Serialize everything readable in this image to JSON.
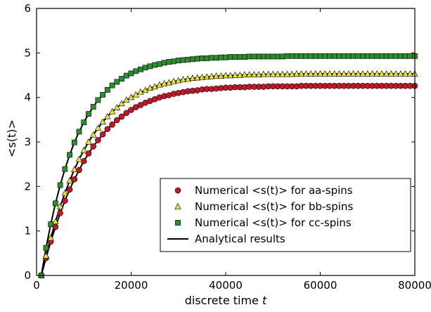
{
  "chart_data": {
    "type": "line",
    "xlabel_prefix": "discrete time ",
    "xlabel_var": "t",
    "ylabel": "<s(t)>",
    "xlim": [
      0,
      80000
    ],
    "ylim": [
      0,
      6
    ],
    "xticks": [
      0,
      20000,
      40000,
      60000,
      80000
    ],
    "yticks": [
      0,
      1,
      2,
      3,
      4,
      5,
      6
    ],
    "grid": false,
    "legend_position": "lower-right",
    "x_start": 1000,
    "x_step": 1000,
    "series": [
      {
        "name": "Numerical <s(t)> for aa-spins",
        "kind": "markers",
        "marker": "circle",
        "color": "#c0182a",
        "values": [
          0,
          0.39,
          0.76,
          1.09,
          1.4,
          1.68,
          1.93,
          2.16,
          2.37,
          2.57,
          2.74,
          2.9,
          3.04,
          3.17,
          3.29,
          3.39,
          3.49,
          3.57,
          3.65,
          3.72,
          3.78,
          3.83,
          3.88,
          3.92,
          3.96,
          4.0,
          4.03,
          4.05,
          4.08,
          4.1,
          4.12,
          4.14,
          4.15,
          4.16,
          4.18,
          4.19,
          4.19,
          4.2,
          4.21,
          4.22,
          4.22,
          4.23,
          4.23,
          4.23,
          4.24,
          4.24,
          4.24,
          4.24,
          4.25,
          4.25,
          4.25,
          4.25,
          4.25,
          4.25,
          4.25,
          4.26,
          4.26,
          4.26,
          4.26,
          4.26,
          4.26,
          4.26,
          4.26,
          4.26,
          4.26,
          4.26,
          4.26,
          4.26,
          4.26,
          4.26,
          4.26,
          4.26,
          4.26,
          4.26,
          4.26,
          4.26,
          4.26,
          4.26,
          4.26,
          4.26
        ]
      },
      {
        "name": "Numerical <s(t)> for bb-spins",
        "kind": "markers",
        "marker": "triangle",
        "color": "#e8e03a",
        "values": [
          0,
          0.44,
          0.84,
          1.21,
          1.55,
          1.85,
          2.13,
          2.38,
          2.61,
          2.81,
          3.0,
          3.16,
          3.31,
          3.45,
          3.57,
          3.68,
          3.77,
          3.86,
          3.94,
          4.0,
          4.06,
          4.12,
          4.16,
          4.21,
          4.24,
          4.28,
          4.31,
          4.33,
          4.36,
          4.38,
          4.4,
          4.41,
          4.43,
          4.44,
          4.45,
          4.46,
          4.47,
          4.48,
          4.48,
          4.49,
          4.49,
          4.5,
          4.5,
          4.51,
          4.51,
          4.51,
          4.51,
          4.52,
          4.52,
          4.52,
          4.52,
          4.52,
          4.52,
          4.52,
          4.53,
          4.53,
          4.53,
          4.53,
          4.53,
          4.53,
          4.53,
          4.53,
          4.53,
          4.53,
          4.53,
          4.53,
          4.53,
          4.53,
          4.53,
          4.53,
          4.53,
          4.53,
          4.53,
          4.53,
          4.53,
          4.53,
          4.53,
          4.53,
          4.53,
          4.53
        ]
      },
      {
        "name": "Numerical <s(t)> for cc-spins",
        "kind": "markers",
        "marker": "square",
        "color": "#2e8b2e",
        "values": [
          0,
          0.62,
          1.15,
          1.62,
          2.03,
          2.39,
          2.71,
          2.99,
          3.23,
          3.44,
          3.63,
          3.79,
          3.94,
          4.06,
          4.17,
          4.27,
          4.35,
          4.42,
          4.49,
          4.54,
          4.59,
          4.63,
          4.67,
          4.7,
          4.73,
          4.75,
          4.78,
          4.8,
          4.81,
          4.83,
          4.84,
          4.85,
          4.86,
          4.87,
          4.88,
          4.88,
          4.89,
          4.89,
          4.9,
          4.9,
          4.91,
          4.91,
          4.91,
          4.91,
          4.92,
          4.92,
          4.92,
          4.92,
          4.92,
          4.92,
          4.92,
          4.92,
          4.93,
          4.93,
          4.93,
          4.93,
          4.93,
          4.93,
          4.93,
          4.93,
          4.93,
          4.93,
          4.93,
          4.93,
          4.93,
          4.93,
          4.93,
          4.93,
          4.93,
          4.93,
          4.93,
          4.93,
          4.93,
          4.93,
          4.93,
          4.93,
          4.93,
          4.93,
          4.93,
          4.93
        ]
      },
      {
        "name": "Analytical results",
        "kind": "line",
        "color": "#000000"
      }
    ]
  }
}
